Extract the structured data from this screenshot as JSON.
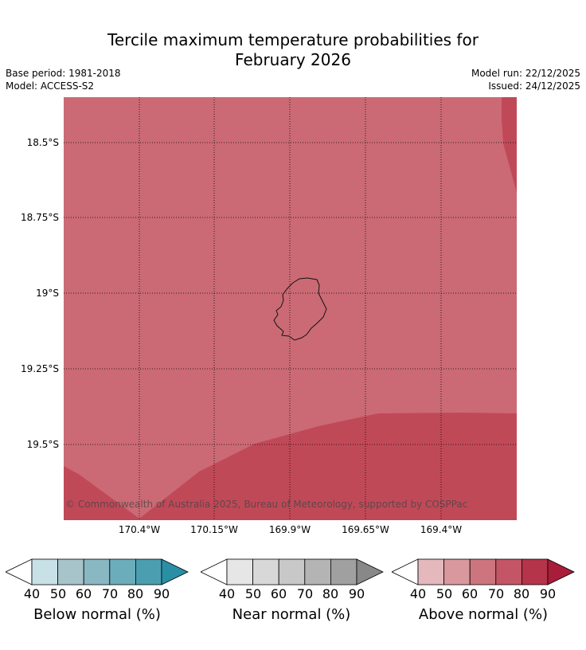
{
  "title_line1": "Tercile maximum temperature probabilities for",
  "title_line2": "February 2026",
  "meta": {
    "base_period": "Base period: 1981-2018",
    "model": "Model: ACCESS-S2",
    "model_run": "Model run: 22/12/2025",
    "issued": "Issued: 24/12/2025"
  },
  "map": {
    "copyright": "© Commonwealth of Australia 2025, Bureau of Meteorology, supported by COSPPac",
    "lat_labels": [
      "18.5°S",
      "18.75°S",
      "19°S",
      "19.25°S",
      "19.5°S"
    ],
    "lon_labels": [
      "170.4°W",
      "170.15°W",
      "169.9°W",
      "169.65°W",
      "169.4°W"
    ],
    "region_colors": {
      "above_60_70": "#cb6a74",
      "above_70_80": "#c04958"
    }
  },
  "legends": {
    "ticks": [
      "40",
      "50",
      "60",
      "70",
      "80",
      "90"
    ],
    "below": {
      "title": "Below normal (%)",
      "colors": [
        "#c8e1e7",
        "#a6c4ca",
        "#89b7c2",
        "#6badbb",
        "#4b9eb0",
        "#2a8fa5"
      ]
    },
    "near": {
      "title": "Near normal (%)",
      "colors": [
        "#e6e6e6",
        "#d8d8d8",
        "#c8c8c8",
        "#b4b4b4",
        "#a0a0a0",
        "#888888"
      ]
    },
    "above": {
      "title": "Above normal (%)",
      "colors": [
        "#e4b8bc",
        "#d8989e",
        "#cd757e",
        "#c45566",
        "#b63449",
        "#a91d3a"
      ]
    }
  }
}
